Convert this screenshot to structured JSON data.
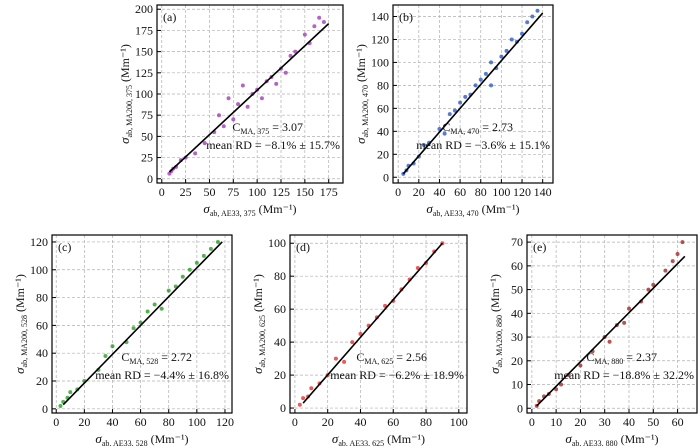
{
  "chart_data": [
    {
      "type": "scatter",
      "panel_label": "(a)",
      "color": "#9b30b0",
      "x_label": {
        "symbol": "σ",
        "subscript": "ab, AE33, 375",
        "unit": "(Mm⁻¹)"
      },
      "y_label": {
        "symbol": "σ",
        "subscript": "ab, MA200, 375",
        "unit": "(Mm⁻¹)"
      },
      "x": [
        8,
        10,
        12,
        15,
        20,
        25,
        35,
        45,
        55,
        60,
        65,
        70,
        75,
        80,
        85,
        90,
        95,
        100,
        105,
        110,
        115,
        120,
        125,
        130,
        135,
        140,
        150,
        155,
        160,
        165,
        170
      ],
      "y": [
        6,
        9,
        12,
        14,
        22,
        25,
        30,
        42,
        55,
        75,
        62,
        95,
        70,
        88,
        110,
        85,
        100,
        105,
        95,
        115,
        120,
        112,
        130,
        125,
        145,
        150,
        170,
        160,
        180,
        190,
        185
      ],
      "xlim": [
        -5,
        190
      ],
      "ylim": [
        -5,
        205
      ],
      "xticks": [
        0,
        25,
        50,
        75,
        100,
        125,
        150,
        175
      ],
      "yticks": [
        0,
        25,
        50,
        75,
        100,
        125,
        150,
        175,
        200
      ],
      "grid": true,
      "fit_line": {
        "x": [
          8,
          175
        ],
        "y": [
          8,
          183
        ]
      },
      "annotations": [
        {
          "parts": [
            "C",
            "MA, 375",
            " = 3.07"
          ]
        },
        {
          "text": "mean RD = −8.1% ± 15.7%"
        }
      ]
    },
    {
      "type": "scatter",
      "panel_label": "(b)",
      "color": "#2050c0",
      "x_label": {
        "symbol": "σ",
        "subscript": "ab, AE33, 470",
        "unit": "(Mm⁻¹)"
      },
      "y_label": {
        "symbol": "σ",
        "subscript": "ab, MA200, 470",
        "unit": "(Mm⁻¹)"
      },
      "x": [
        5,
        8,
        10,
        15,
        20,
        25,
        30,
        40,
        45,
        50,
        55,
        60,
        65,
        70,
        75,
        80,
        85,
        90,
        90,
        95,
        100,
        105,
        110,
        115,
        120,
        125,
        130,
        135
      ],
      "y": [
        3,
        6,
        10,
        12,
        18,
        28,
        30,
        42,
        38,
        55,
        58,
        65,
        70,
        72,
        80,
        85,
        90,
        80,
        100,
        95,
        105,
        110,
        120,
        118,
        125,
        135,
        140,
        145
      ],
      "xlim": [
        -5,
        150
      ],
      "ylim": [
        -5,
        150
      ],
      "xticks": [
        0,
        20,
        40,
        60,
        80,
        100,
        120,
        140
      ],
      "yticks": [
        0,
        20,
        40,
        60,
        80,
        100,
        120,
        140
      ],
      "grid": true,
      "fit_line": {
        "x": [
          5,
          140
        ],
        "y": [
          3,
          143
        ]
      },
      "annotations": [
        {
          "parts": [
            "C",
            "MA, 470",
            " = 2.73"
          ]
        },
        {
          "text": "mean RD = −3.6% ± 15.1%"
        }
      ]
    },
    {
      "type": "scatter",
      "panel_label": "(c)",
      "color": "#1a9a1a",
      "x_label": {
        "symbol": "σ",
        "subscript": "ab, AE33, 528",
        "unit": "(Mm⁻¹)"
      },
      "y_label": {
        "symbol": "σ",
        "subscript": "ab, MA200, 528",
        "unit": "(Mm⁻¹)"
      },
      "x": [
        3,
        5,
        8,
        10,
        15,
        20,
        30,
        35,
        40,
        50,
        55,
        60,
        65,
        70,
        75,
        80,
        85,
        90,
        95,
        100,
        105,
        110,
        115
      ],
      "y": [
        2,
        5,
        8,
        12,
        14,
        20,
        28,
        38,
        45,
        48,
        58,
        62,
        70,
        75,
        72,
        85,
        88,
        95,
        100,
        105,
        110,
        115,
        120
      ],
      "xlim": [
        -3,
        125
      ],
      "ylim": [
        -3,
        125
      ],
      "xticks": [
        0,
        20,
        40,
        60,
        80,
        100,
        120
      ],
      "yticks": [
        0,
        20,
        40,
        60,
        80,
        100,
        120
      ],
      "grid": true,
      "fit_line": {
        "x": [
          5,
          118
        ],
        "y": [
          3,
          120
        ]
      },
      "annotations": [
        {
          "parts": [
            "C",
            "MA, 528",
            " = 2.72"
          ]
        },
        {
          "text": "mean RD = −4.4% ± 16.8%"
        }
      ]
    },
    {
      "type": "scatter",
      "panel_label": "(d)",
      "color": "#e82020",
      "x_label": {
        "symbol": "σ",
        "subscript": "ab, AE33, 625",
        "unit": "(Mm⁻¹)"
      },
      "y_label": {
        "symbol": "σ",
        "subscript": "ab, MA200, 625",
        "unit": "(Mm⁻¹)"
      },
      "x": [
        3,
        5,
        8,
        10,
        15,
        20,
        25,
        30,
        35,
        40,
        45,
        50,
        55,
        60,
        65,
        70,
        75,
        80,
        85,
        90
      ],
      "y": [
        2,
        6,
        7,
        12,
        15,
        20,
        30,
        28,
        40,
        45,
        50,
        55,
        62,
        65,
        72,
        78,
        85,
        88,
        95,
        100
      ],
      "xlim": [
        -3,
        105
      ],
      "ylim": [
        -3,
        105
      ],
      "xticks": [
        0,
        20,
        40,
        60,
        80,
        100
      ],
      "yticks": [
        0,
        20,
        40,
        60,
        80,
        100
      ],
      "grid": true,
      "fit_line": {
        "x": [
          5,
          90
        ],
        "y": [
          3,
          100
        ]
      },
      "annotations": [
        {
          "parts": [
            "C",
            "MA, 625",
            " = 2.56"
          ]
        },
        {
          "text": "mean RD = −6.2% ± 18.9%"
        }
      ]
    },
    {
      "type": "scatter",
      "panel_label": "(e)",
      "color": "#9b1b1b",
      "x_label": {
        "symbol": "σ",
        "subscript": "ab, AE33, 880",
        "unit": "(Mm⁻¹)"
      },
      "y_label": {
        "symbol": "σ",
        "subscript": "ab, MA200, 880",
        "unit": "(Mm⁻¹)"
      },
      "x": [
        2,
        3,
        5,
        7,
        10,
        12,
        15,
        20,
        25,
        30,
        32,
        35,
        38,
        40,
        45,
        48,
        50,
        55,
        58,
        60,
        62
      ],
      "y": [
        1,
        3,
        5,
        6,
        8,
        10,
        14,
        18,
        24,
        30,
        28,
        35,
        36,
        42,
        45,
        50,
        52,
        58,
        62,
        65,
        70
      ],
      "xlim": [
        -2,
        68
      ],
      "ylim": [
        -2,
        73
      ],
      "xticks": [
        0,
        10,
        20,
        30,
        40,
        50,
        60
      ],
      "yticks": [
        0,
        10,
        20,
        30,
        40,
        50,
        60,
        70
      ],
      "grid": true,
      "fit_line": {
        "x": [
          2,
          63
        ],
        "y": [
          1,
          64
        ]
      },
      "annotations": [
        {
          "parts": [
            "C",
            "MA, 880",
            " = 2.37"
          ]
        },
        {
          "text": "mean RD = −18.8% ± 32.2%"
        }
      ]
    }
  ]
}
